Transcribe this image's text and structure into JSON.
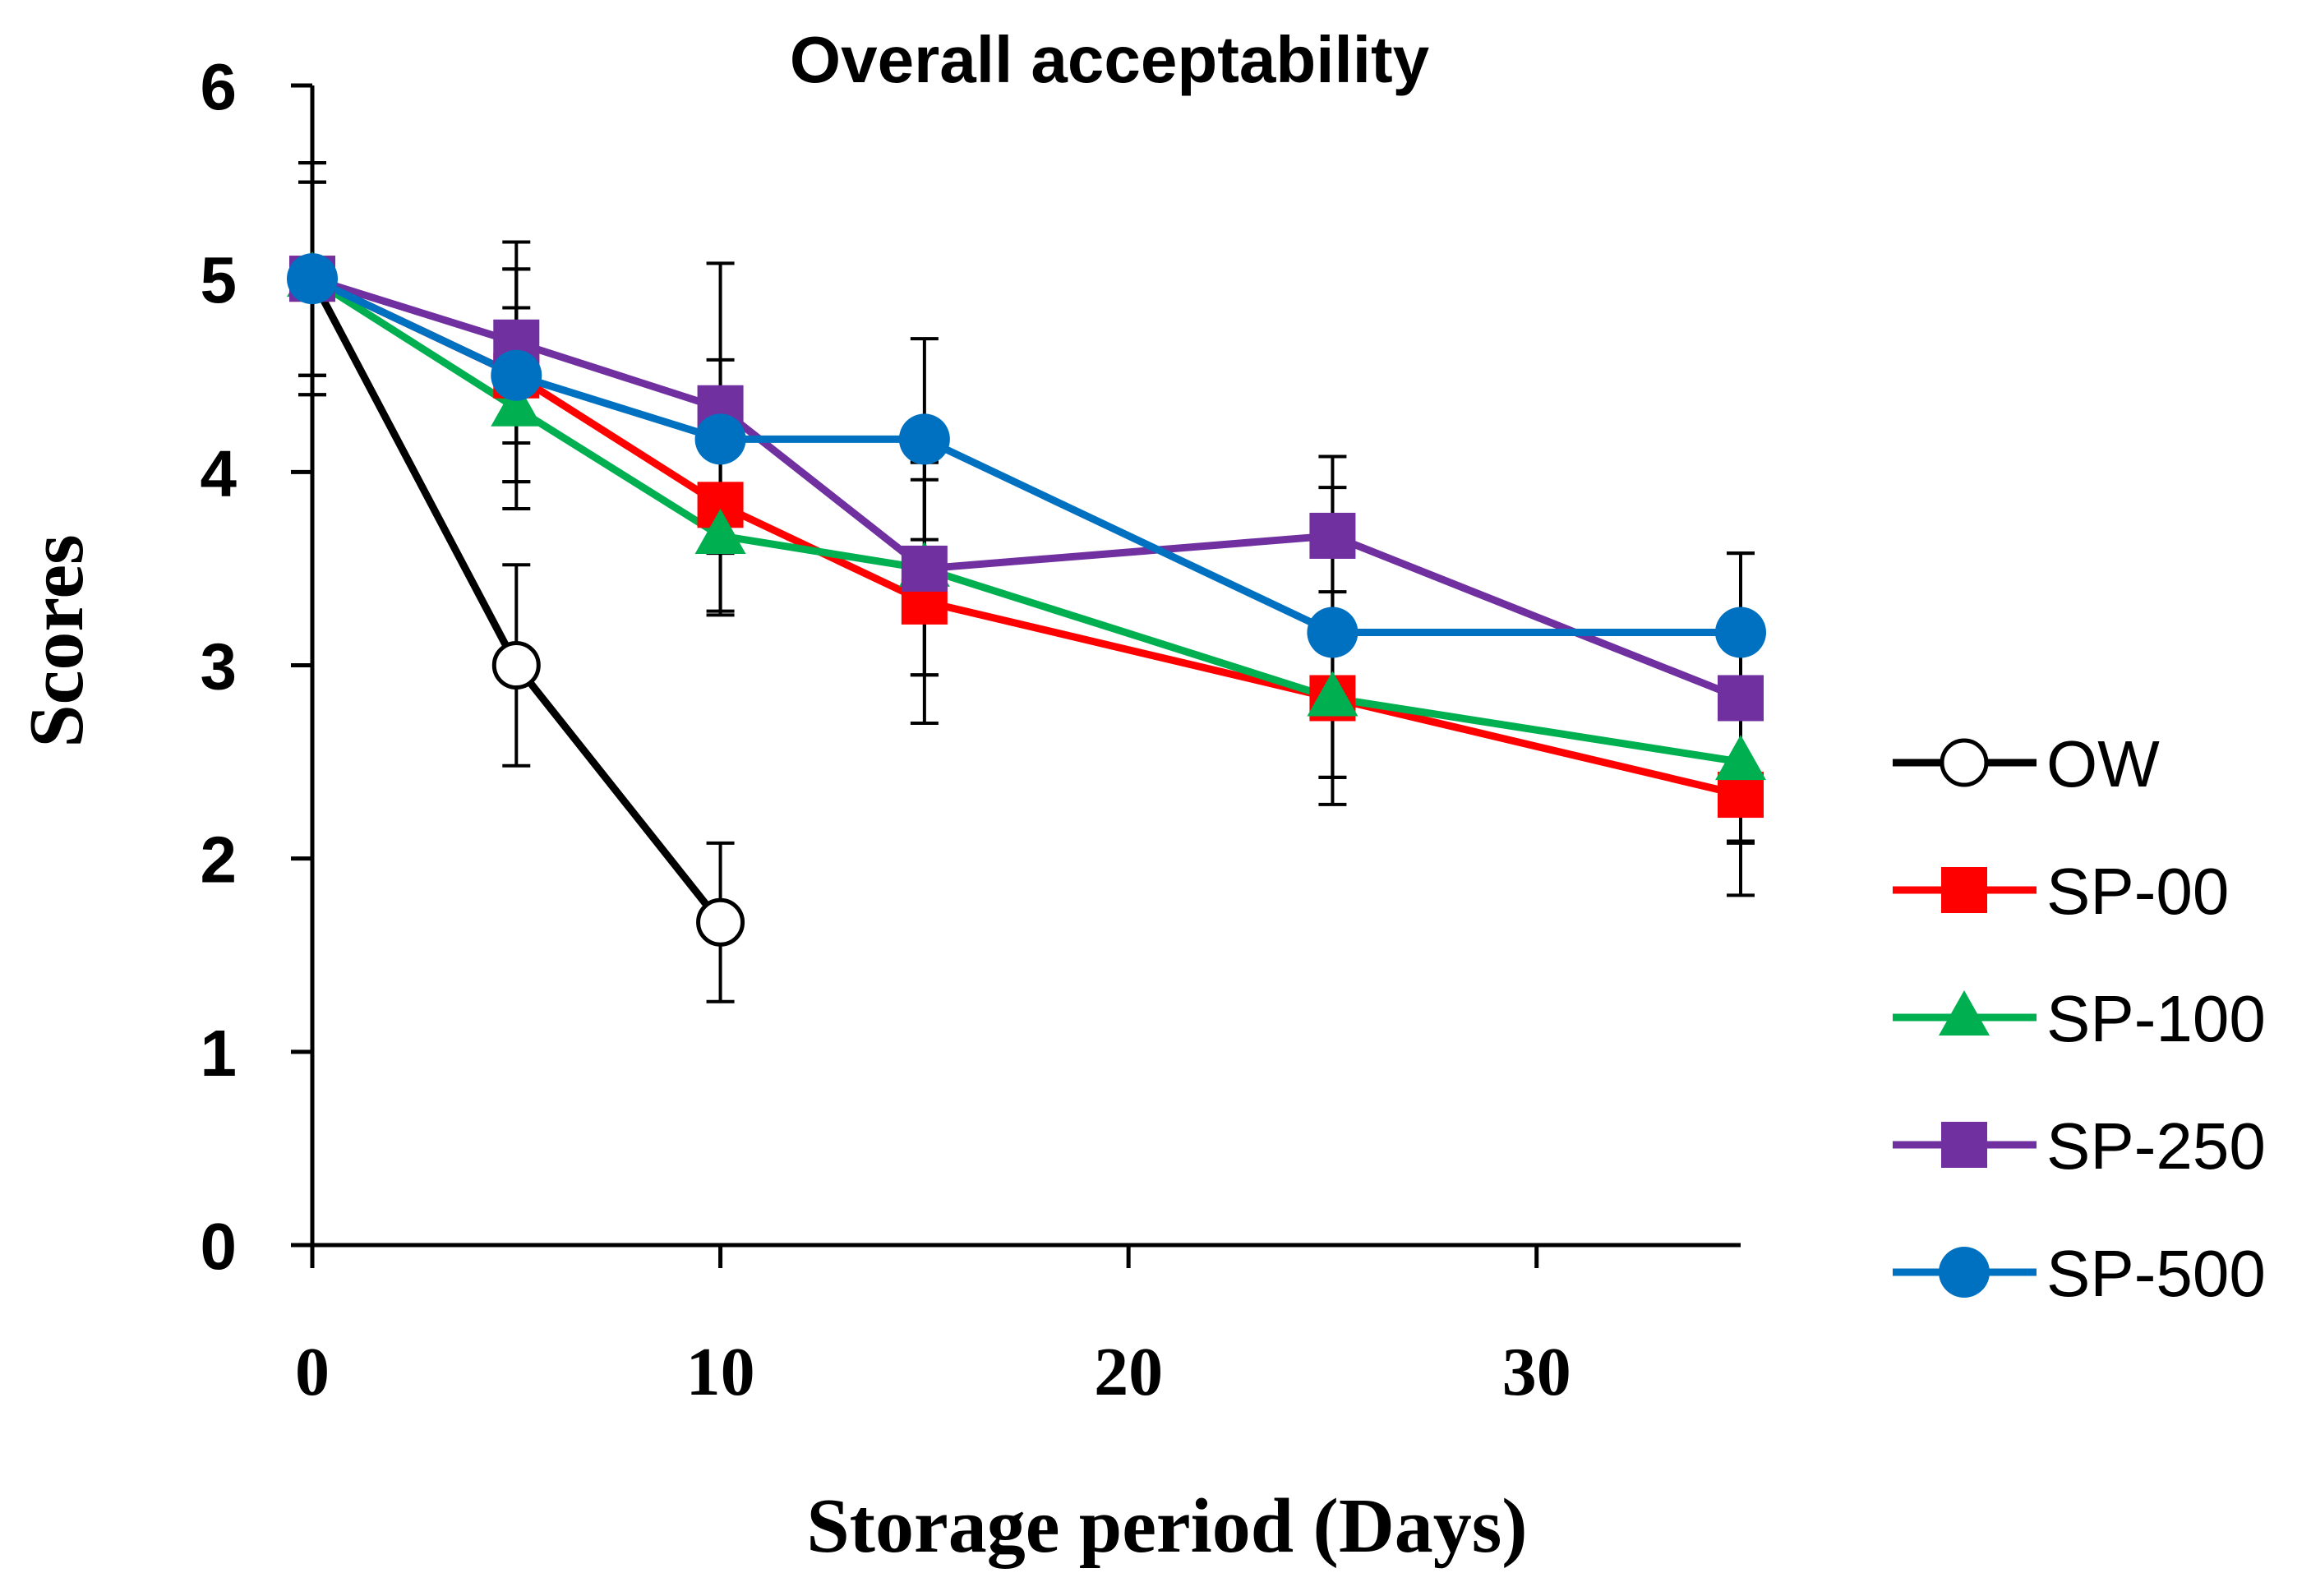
{
  "chart_data": {
    "type": "line",
    "title": "Overall acceptability",
    "xlabel": "Storage period (Days)",
    "ylabel": "Scores",
    "xlim": [
      0,
      35
    ],
    "ylim": [
      0,
      6
    ],
    "xticks": [
      0,
      10,
      20,
      30
    ],
    "yticks": [
      0,
      1,
      2,
      3,
      4,
      5,
      6
    ],
    "grid": false,
    "legend_position": "right",
    "series": [
      {
        "name": "OW",
        "color": "#000000",
        "marker": "open-circle",
        "points": [
          {
            "x": 0,
            "y": 5.0,
            "err": 0.6
          },
          {
            "x": 5,
            "y": 3.0,
            "err": 0.52
          },
          {
            "x": 10,
            "y": 1.67,
            "err": 0.41
          }
        ]
      },
      {
        "name": "SP-00",
        "color": "#ff0000",
        "marker": "square",
        "points": [
          {
            "x": 0,
            "y": 5.0,
            "err": 0.5
          },
          {
            "x": 5,
            "y": 4.5,
            "err": 0.55
          },
          {
            "x": 10,
            "y": 3.83,
            "err": 0.55
          },
          {
            "x": 15,
            "y": 3.33,
            "err": 0.63
          },
          {
            "x": 25,
            "y": 2.83,
            "err": 0.55
          },
          {
            "x": 35,
            "y": 2.33,
            "err": 0.52
          }
        ]
      },
      {
        "name": "SP-100",
        "color": "#00b050",
        "marker": "triangle",
        "points": [
          {
            "x": 0,
            "y": 5.0,
            "err": 0.5
          },
          {
            "x": 5,
            "y": 4.33,
            "err": 0.52
          },
          {
            "x": 10,
            "y": 3.67,
            "err": 0.41
          },
          {
            "x": 15,
            "y": 3.5,
            "err": 0.55
          },
          {
            "x": 25,
            "y": 2.83,
            "err": 0.41
          },
          {
            "x": 35,
            "y": 2.5,
            "err": 0.41
          }
        ]
      },
      {
        "name": "SP-250",
        "color": "#7030a0",
        "marker": "square",
        "points": [
          {
            "x": 0,
            "y": 5.0,
            "err": 0.6
          },
          {
            "x": 5,
            "y": 4.67,
            "err": 0.52
          },
          {
            "x": 10,
            "y": 4.33,
            "err": 0.75
          },
          {
            "x": 15,
            "y": 3.5,
            "err": 0.55
          },
          {
            "x": 25,
            "y": 3.67,
            "err": 0.41
          },
          {
            "x": 35,
            "y": 2.83,
            "err": 0.75
          }
        ]
      },
      {
        "name": "SP-500",
        "color": "#0070c0",
        "marker": "circle",
        "points": [
          {
            "x": 0,
            "y": 5.0,
            "err": 0.5
          },
          {
            "x": 5,
            "y": 4.5,
            "err": 0.55
          },
          {
            "x": 10,
            "y": 4.17,
            "err": 0.41
          },
          {
            "x": 15,
            "y": 4.17,
            "err": 0.52
          },
          {
            "x": 25,
            "y": 3.17,
            "err": 0.75
          },
          {
            "x": 35,
            "y": 3.17,
            "err": 0.41
          }
        ]
      }
    ]
  }
}
